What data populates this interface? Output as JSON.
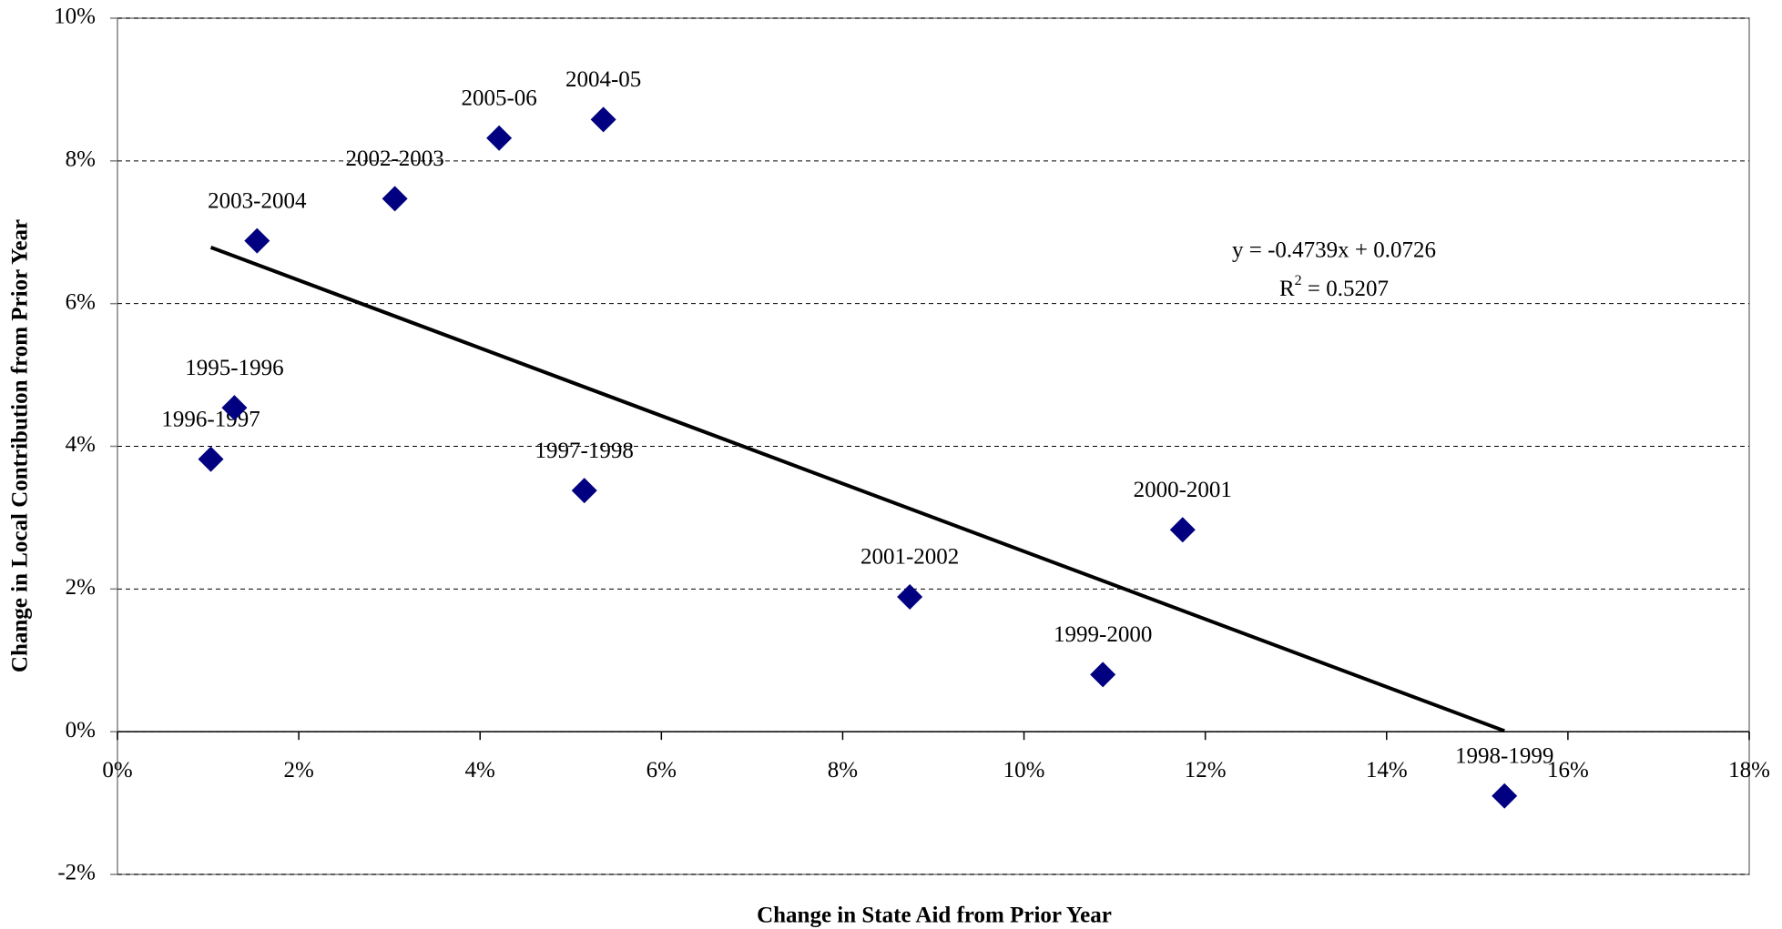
{
  "chart_data": {
    "type": "scatter",
    "xlabel": "Change in State Aid from Prior Year",
    "ylabel": "Change in Local Contribution from Prior Year",
    "categories": [
      "1996-1997",
      "1995-1996",
      "2003-2004",
      "2002-2003",
      "2005-06",
      "2004-05",
      "1997-1998",
      "2001-2002",
      "1999-2000",
      "2000-2001",
      "1998-1999"
    ],
    "x": [
      1.03,
      1.29,
      1.54,
      3.06,
      4.21,
      5.36,
      5.15,
      8.74,
      10.87,
      11.75,
      15.3
    ],
    "values": [
      3.82,
      4.54,
      6.88,
      7.47,
      8.32,
      8.58,
      3.38,
      1.89,
      0.8,
      2.83,
      -0.9
    ],
    "color": "#000080",
    "trendline": {
      "equation": "y = -0.4739x + 0.0726",
      "r_symbol": "R",
      "r_exponent": "2",
      "r_value": " = 0.5207",
      "color": "#000000"
    },
    "xlim": [
      0,
      18
    ],
    "xticks": [
      {
        "value": 0,
        "label": "0%"
      },
      {
        "value": 2,
        "label": "2%"
      },
      {
        "value": 4,
        "label": "4%"
      },
      {
        "value": 6,
        "label": "6%"
      },
      {
        "value": 8,
        "label": "8%"
      },
      {
        "value": 10,
        "label": "10%"
      },
      {
        "value": 12,
        "label": "12%"
      },
      {
        "value": 14,
        "label": "14%"
      },
      {
        "value": 16,
        "label": "16%"
      },
      {
        "value": 18,
        "label": "18%"
      }
    ],
    "ylim": [
      -2,
      10
    ],
    "yticks": [
      {
        "value": -2,
        "label": "-2%"
      },
      {
        "value": 0,
        "label": "0%"
      },
      {
        "value": 2,
        "label": "2%"
      },
      {
        "value": 4,
        "label": "4%"
      },
      {
        "value": 6,
        "label": "6%"
      },
      {
        "value": 8,
        "label": "8%"
      },
      {
        "value": 10,
        "label": "10%"
      }
    ],
    "grid": true
  }
}
